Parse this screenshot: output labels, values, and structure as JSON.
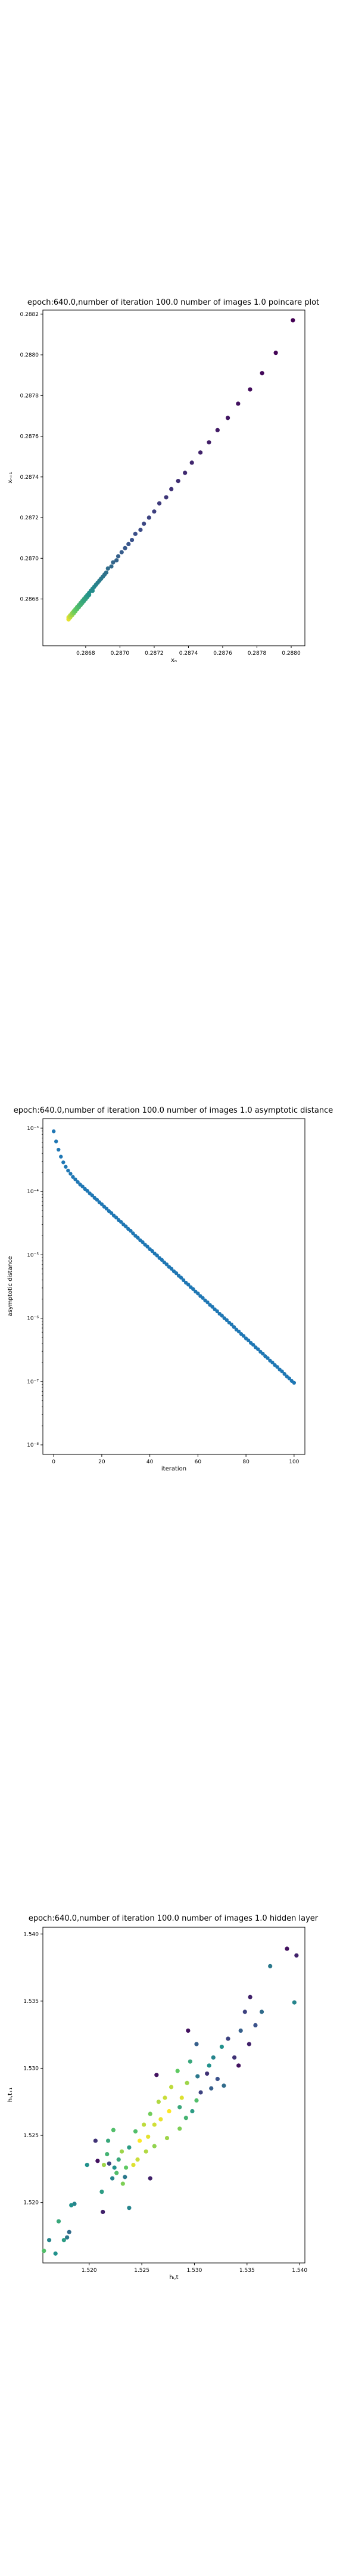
{
  "chart_data": [
    {
      "type": "scatter",
      "title": "epoch:640.0,number of iteration 100.0 number of images 1.0 poincare plot",
      "xlabel": "xₙ",
      "ylabel": "xₙ₊₁",
      "xlim": [
        0.28655,
        0.28808
      ],
      "ylim": [
        0.28657,
        0.28822
      ],
      "xticks": [
        0.2868,
        0.287,
        0.2872,
        0.2874,
        0.2876,
        0.2878,
        0.288
      ],
      "xtick_labels": [
        "0.2868",
        "0.2870",
        "0.2872",
        "0.2874",
        "0.2876",
        "0.2878",
        "0.2880"
      ],
      "yticks": [
        0.2868,
        0.287,
        0.2872,
        0.2874,
        0.2876,
        0.2878,
        0.288,
        0.2882
      ],
      "ytick_labels": [
        "0.2868",
        "0.2870",
        "0.2872",
        "0.2874",
        "0.2876",
        "0.2878",
        "0.2880",
        "0.2882"
      ],
      "colormap": "viridis",
      "color_order": "dark points at the large values, yellow at the small end",
      "series": [
        {
          "x": [
            0.28801,
            0.28791,
            0.28783,
            0.28776,
            0.28769,
            0.28763,
            0.28757,
            0.28752,
            0.28747,
            0.28742,
            0.28738,
            0.28734,
            0.2873,
            0.28727,
            0.28723,
            0.2872,
            0.28717,
            0.28714,
            0.28712,
            0.28709,
            0.28707,
            0.28705,
            0.28703,
            0.28701,
            0.28699,
            0.28698,
            0.28696,
            0.28695,
            0.28693,
            0.28692,
            0.28691,
            0.2869,
            0.28689,
            0.28688,
            0.28687,
            0.28686,
            0.28685,
            0.28684,
            0.28684,
            0.28683,
            0.28682,
            0.28682,
            0.28681,
            0.28681,
            0.2868,
            0.2868,
            0.28679,
            0.28679,
            0.28678,
            0.28678,
            0.28677,
            0.28677,
            0.28677,
            0.28676,
            0.28676,
            0.28676,
            0.28675,
            0.28675,
            0.28675,
            0.28674,
            0.28674,
            0.28674,
            0.28673,
            0.28673,
            0.28673,
            0.28673,
            0.28672,
            0.28672,
            0.28672,
            0.28672,
            0.28671,
            0.28671,
            0.28671,
            0.28671,
            0.28671,
            0.2867,
            0.2867,
            0.2867,
            0.2867,
            0.2867
          ],
          "y": [
            0.28817,
            0.28801,
            0.28791,
            0.28783,
            0.28776,
            0.28769,
            0.28763,
            0.28757,
            0.28752,
            0.28747,
            0.28742,
            0.28738,
            0.28734,
            0.2873,
            0.28727,
            0.28723,
            0.2872,
            0.28717,
            0.28714,
            0.28712,
            0.28709,
            0.28707,
            0.28705,
            0.28703,
            0.28701,
            0.28699,
            0.28698,
            0.28696,
            0.28695,
            0.28693,
            0.28692,
            0.28691,
            0.2869,
            0.28689,
            0.28688,
            0.28687,
            0.28686,
            0.28685,
            0.28684,
            0.28684,
            0.28683,
            0.28682,
            0.28682,
            0.28681,
            0.28681,
            0.2868,
            0.2868,
            0.28679,
            0.28679,
            0.28678,
            0.28678,
            0.28677,
            0.28677,
            0.28677,
            0.28676,
            0.28676,
            0.28676,
            0.28675,
            0.28675,
            0.28675,
            0.28674,
            0.28674,
            0.28674,
            0.28673,
            0.28673,
            0.28673,
            0.28673,
            0.28672,
            0.28672,
            0.28672,
            0.28672,
            0.28671,
            0.28671,
            0.28671,
            0.28671,
            0.28671,
            0.2867,
            0.2867,
            0.2867,
            0.2867
          ]
        }
      ]
    },
    {
      "type": "scatter",
      "title": "epoch:640.0,number of iteration 100.0  number of images 1.0 asymptotic distance",
      "xlabel": "iteration",
      "ylabel": "asymptotic distance",
      "yscale": "log",
      "xlim": [
        -4.5,
        104.5
      ],
      "ylim_log10": [
        -8.15,
        -2.85
      ],
      "xticks": [
        0,
        20,
        40,
        60,
        80,
        100
      ],
      "xtick_labels": [
        "0",
        "20",
        "40",
        "60",
        "80",
        "100"
      ],
      "yticks_log10": [
        -3,
        -4,
        -5,
        -6,
        -7,
        -8
      ],
      "ytick_labels": [
        "10⁻³",
        "10⁻⁴",
        "10⁻⁵",
        "10⁻⁶",
        "10⁻⁷",
        "10⁻⁸"
      ],
      "color": "#1f77b4",
      "series": [
        {
          "x": [
            0,
            1,
            2,
            3,
            4,
            5,
            6,
            7,
            8,
            9,
            10,
            11,
            12,
            13,
            14,
            15,
            16,
            17,
            18,
            19,
            20,
            21,
            22,
            23,
            24,
            25,
            26,
            27,
            28,
            29,
            30,
            31,
            32,
            33,
            34,
            35,
            36,
            37,
            38,
            39,
            40,
            41,
            42,
            43,
            44,
            45,
            46,
            47,
            48,
            49,
            50,
            51,
            52,
            53,
            54,
            55,
            56,
            57,
            58,
            59,
            60,
            61,
            62,
            63,
            64,
            65,
            66,
            67,
            68,
            69,
            70,
            71,
            72,
            73,
            74,
            75,
            76,
            77,
            78,
            79,
            80,
            81,
            82,
            83,
            84,
            85,
            86,
            87,
            88,
            89,
            90,
            91,
            92,
            93,
            94,
            95,
            96,
            97,
            98,
            99,
            100
          ],
          "log10_y": [
            -3.05,
            -3.21,
            -3.34,
            -3.45,
            -3.54,
            -3.61,
            -3.67,
            -3.72,
            -3.77,
            -3.81,
            -3.85,
            -3.89,
            -3.92,
            -3.96,
            -3.99,
            -4.03,
            -4.06,
            -4.1,
            -4.13,
            -4.17,
            -4.2,
            -4.24,
            -4.27,
            -4.31,
            -4.34,
            -4.38,
            -4.41,
            -4.45,
            -4.48,
            -4.52,
            -4.55,
            -4.59,
            -4.62,
            -4.66,
            -4.7,
            -4.73,
            -4.77,
            -4.8,
            -4.84,
            -4.87,
            -4.91,
            -4.94,
            -4.98,
            -5.01,
            -5.05,
            -5.08,
            -5.12,
            -5.15,
            -5.19,
            -5.22,
            -5.26,
            -5.29,
            -5.33,
            -5.36,
            -5.4,
            -5.44,
            -5.47,
            -5.51,
            -5.54,
            -5.58,
            -5.61,
            -5.65,
            -5.68,
            -5.72,
            -5.75,
            -5.79,
            -5.82,
            -5.86,
            -5.89,
            -5.93,
            -5.96,
            -6.0,
            -6.03,
            -6.07,
            -6.1,
            -6.14,
            -6.18,
            -6.21,
            -6.25,
            -6.28,
            -6.32,
            -6.35,
            -6.39,
            -6.42,
            -6.46,
            -6.49,
            -6.53,
            -6.56,
            -6.6,
            -6.63,
            -6.67,
            -6.7,
            -6.74,
            -6.77,
            -6.81,
            -6.84,
            -6.88,
            -6.92,
            -6.95,
            -6.99,
            -7.02
          ]
        }
      ]
    },
    {
      "type": "scatter",
      "title": "epoch:640.0,number of iteration 100.0  number of images 1.0 hidden layer",
      "xlabel": "hᵢ,t",
      "ylabel": "hᵢ,t₊₁",
      "xlim": [
        1.5156,
        1.5405
      ],
      "ylim": [
        1.5155,
        1.5405
      ],
      "xticks": [
        1.52,
        1.525,
        1.53,
        1.535,
        1.54
      ],
      "xtick_labels": [
        "1.520",
        "1.525",
        "1.530",
        "1.535",
        "1.540"
      ],
      "yticks": [
        1.52,
        1.525,
        1.53,
        1.535,
        1.54
      ],
      "ytick_labels": [
        "1.520",
        "1.525",
        "1.530",
        "1.535",
        "1.540"
      ],
      "colormap": "viridis",
      "points": [
        {
          "x": 1.5388,
          "y": 1.5389,
          "c": 0.05
        },
        {
          "x": 1.5397,
          "y": 1.5384,
          "c": 0.1
        },
        {
          "x": 1.5372,
          "y": 1.5376,
          "c": 0.4
        },
        {
          "x": 1.5395,
          "y": 1.5349,
          "c": 0.45
        },
        {
          "x": 1.5353,
          "y": 1.5353,
          "c": 0.1
        },
        {
          "x": 1.5364,
          "y": 1.5342,
          "c": 0.35
        },
        {
          "x": 1.5348,
          "y": 1.5342,
          "c": 0.2
        },
        {
          "x": 1.5358,
          "y": 1.5332,
          "c": 0.25
        },
        {
          "x": 1.5344,
          "y": 1.5328,
          "c": 0.3
        },
        {
          "x": 1.5352,
          "y": 1.5318,
          "c": 0.1
        },
        {
          "x": 1.5332,
          "y": 1.5322,
          "c": 0.2
        },
        {
          "x": 1.5338,
          "y": 1.5308,
          "c": 0.15
        },
        {
          "x": 1.5342,
          "y": 1.5302,
          "c": 0.05
        },
        {
          "x": 1.5326,
          "y": 1.5316,
          "c": 0.5
        },
        {
          "x": 1.5318,
          "y": 1.5308,
          "c": 0.45
        },
        {
          "x": 1.5312,
          "y": 1.5296,
          "c": 0.15
        },
        {
          "x": 1.5322,
          "y": 1.5292,
          "c": 0.25
        },
        {
          "x": 1.5316,
          "y": 1.5285,
          "c": 0.3
        },
        {
          "x": 1.5328,
          "y": 1.5287,
          "c": 0.35
        },
        {
          "x": 1.5294,
          "y": 1.5328,
          "c": 0.05
        },
        {
          "x": 1.5296,
          "y": 1.5305,
          "c": 0.6
        },
        {
          "x": 1.5303,
          "y": 1.5294,
          "c": 0.4
        },
        {
          "x": 1.5306,
          "y": 1.5282,
          "c": 0.2
        },
        {
          "x": 1.5302,
          "y": 1.5276,
          "c": 0.7
        },
        {
          "x": 1.5298,
          "y": 1.5268,
          "c": 0.55
        },
        {
          "x": 1.5293,
          "y": 1.5289,
          "c": 0.85
        },
        {
          "x": 1.5288,
          "y": 1.5278,
          "c": 0.95
        },
        {
          "x": 1.5284,
          "y": 1.5298,
          "c": 0.75
        },
        {
          "x": 1.5278,
          "y": 1.5286,
          "c": 0.9
        },
        {
          "x": 1.5292,
          "y": 1.5263,
          "c": 0.65
        },
        {
          "x": 1.5286,
          "y": 1.5255,
          "c": 0.8
        },
        {
          "x": 1.5276,
          "y": 1.5268,
          "c": 1.0
        },
        {
          "x": 1.5272,
          "y": 1.5278,
          "c": 0.92
        },
        {
          "x": 1.5266,
          "y": 1.5275,
          "c": 0.88
        },
        {
          "x": 1.5268,
          "y": 1.5262,
          "c": 0.97
        },
        {
          "x": 1.5262,
          "y": 1.5258,
          "c": 0.93
        },
        {
          "x": 1.5274,
          "y": 1.5248,
          "c": 0.85
        },
        {
          "x": 1.5258,
          "y": 1.5266,
          "c": 0.78
        },
        {
          "x": 1.5256,
          "y": 1.5249,
          "c": 0.96
        },
        {
          "x": 1.5252,
          "y": 1.5258,
          "c": 0.9
        },
        {
          "x": 1.5262,
          "y": 1.5242,
          "c": 0.83
        },
        {
          "x": 1.5248,
          "y": 1.5246,
          "c": 1.0
        },
        {
          "x": 1.5254,
          "y": 1.5238,
          "c": 0.88
        },
        {
          "x": 1.5264,
          "y": 1.5295,
          "c": 0.05
        },
        {
          "x": 1.5244,
          "y": 1.5253,
          "c": 0.7
        },
        {
          "x": 1.5246,
          "y": 1.5232,
          "c": 0.92
        },
        {
          "x": 1.5238,
          "y": 1.5241,
          "c": 0.55
        },
        {
          "x": 1.5242,
          "y": 1.5228,
          "c": 0.95
        },
        {
          "x": 1.5235,
          "y": 1.5226,
          "c": 0.75
        },
        {
          "x": 1.5258,
          "y": 1.5218,
          "c": 0.1
        },
        {
          "x": 1.5231,
          "y": 1.5238,
          "c": 0.85
        },
        {
          "x": 1.5228,
          "y": 1.5232,
          "c": 0.6
        },
        {
          "x": 1.5226,
          "y": 1.5222,
          "c": 0.7
        },
        {
          "x": 1.5224,
          "y": 1.5226,
          "c": 0.5
        },
        {
          "x": 1.5222,
          "y": 1.5218,
          "c": 0.45
        },
        {
          "x": 1.5232,
          "y": 1.5214,
          "c": 0.8
        },
        {
          "x": 1.5219,
          "y": 1.5229,
          "c": 0.2
        },
        {
          "x": 1.5217,
          "y": 1.5236,
          "c": 0.65
        },
        {
          "x": 1.5214,
          "y": 1.5228,
          "c": 0.85
        },
        {
          "x": 1.5212,
          "y": 1.5208,
          "c": 0.55
        },
        {
          "x": 1.5208,
          "y": 1.5231,
          "c": 0.05
        },
        {
          "x": 1.5206,
          "y": 1.5246,
          "c": 0.15
        },
        {
          "x": 1.5218,
          "y": 1.5246,
          "c": 0.6
        },
        {
          "x": 1.5223,
          "y": 1.5254,
          "c": 0.7
        },
        {
          "x": 1.5198,
          "y": 1.5228,
          "c": 0.5
        },
        {
          "x": 1.5234,
          "y": 1.5219,
          "c": 0.4
        },
        {
          "x": 1.5238,
          "y": 1.5196,
          "c": 0.45
        },
        {
          "x": 1.5213,
          "y": 1.5193,
          "c": 0.1
        },
        {
          "x": 1.5186,
          "y": 1.5199,
          "c": 0.45
        },
        {
          "x": 1.5183,
          "y": 1.5198,
          "c": 0.5
        },
        {
          "x": 1.5181,
          "y": 1.5178,
          "c": 0.35
        },
        {
          "x": 1.5179,
          "y": 1.5174,
          "c": 0.4
        },
        {
          "x": 1.5176,
          "y": 1.5172,
          "c": 0.55
        },
        {
          "x": 1.5171,
          "y": 1.5186,
          "c": 0.6
        },
        {
          "x": 1.5168,
          "y": 1.5162,
          "c": 0.5
        },
        {
          "x": 1.5162,
          "y": 1.5172,
          "c": 0.45
        },
        {
          "x": 1.5157,
          "y": 1.5164,
          "c": 0.7
        },
        {
          "x": 1.5286,
          "y": 1.5271,
          "c": 0.6
        },
        {
          "x": 1.5302,
          "y": 1.5318,
          "c": 0.3
        },
        {
          "x": 1.5314,
          "y": 1.5302,
          "c": 0.5
        }
      ]
    }
  ]
}
